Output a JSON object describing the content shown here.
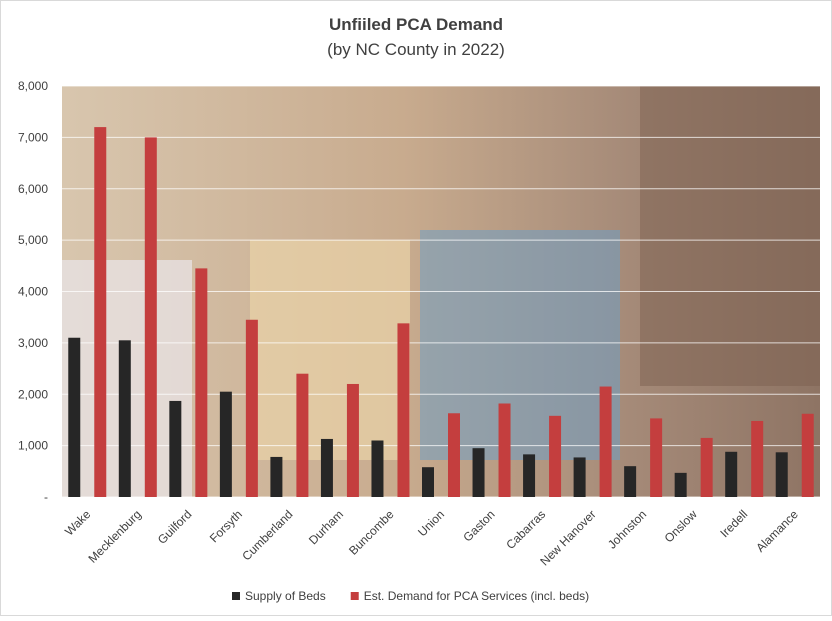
{
  "chart_data": {
    "type": "bar",
    "title": "Unfiiled PCA Demand",
    "subtitle": "(by NC County in 2022)",
    "categories": [
      "Wake",
      "Mecklenburg",
      "Guilford",
      "Forsyth",
      "Cumberland",
      "Durham",
      "Buncombe",
      "Union",
      "Gaston",
      "Cabarras",
      "New Hanover",
      "Johnston",
      "Onslow",
      "Iredell",
      "Alamance"
    ],
    "series": [
      {
        "name": "Supply of Beds",
        "color": "#262626",
        "values": [
          3100,
          3050,
          1870,
          2050,
          780,
          1130,
          1100,
          580,
          950,
          830,
          770,
          600,
          470,
          880,
          870
        ]
      },
      {
        "name": "Est. Demand for PCA Services (incl. beds)",
        "color": "#c43e3e",
        "values": [
          7200,
          7000,
          4450,
          3450,
          2400,
          2200,
          3380,
          1630,
          1820,
          1580,
          2150,
          1530,
          1150,
          1480,
          1620
        ]
      }
    ],
    "ylim": [
      0,
      8000
    ],
    "yticks": [
      {
        "value": 0,
        "label": "-"
      },
      {
        "value": 1000,
        "label": "1,000"
      },
      {
        "value": 2000,
        "label": "2,000"
      },
      {
        "value": 3000,
        "label": "3,000"
      },
      {
        "value": 4000,
        "label": "4,000"
      },
      {
        "value": 5000,
        "label": "5,000"
      },
      {
        "value": 6000,
        "label": "6,000"
      },
      {
        "value": 7000,
        "label": "7,000"
      },
      {
        "value": 8000,
        "label": "8,000"
      }
    ],
    "grid": true,
    "legend": "bottom"
  }
}
